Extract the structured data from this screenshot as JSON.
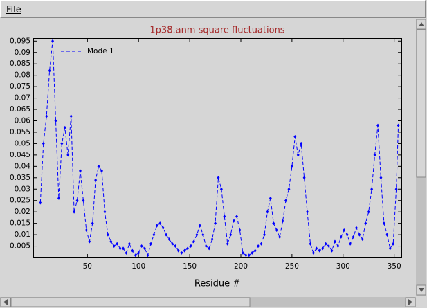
{
  "menu": [
    "File"
  ],
  "chart_data": {
    "type": "line",
    "title": "1p38.anm square fluctuations",
    "xlabel": "Residue #",
    "x": [
      4,
      7,
      10,
      13,
      16,
      19,
      22,
      25,
      28,
      31,
      34,
      37,
      40,
      43,
      46,
      49,
      52,
      55,
      58,
      61,
      64,
      67,
      70,
      73,
      76,
      79,
      82,
      85,
      88,
      91,
      94,
      97,
      100,
      103,
      106,
      109,
      112,
      115,
      118,
      121,
      124,
      127,
      130,
      133,
      136,
      139,
      142,
      145,
      148,
      151,
      154,
      157,
      160,
      163,
      166,
      169,
      172,
      175,
      178,
      181,
      184,
      187,
      190,
      193,
      196,
      199,
      202,
      205,
      208,
      211,
      214,
      217,
      220,
      223,
      226,
      229,
      232,
      235,
      238,
      241,
      244,
      247,
      250,
      253,
      256,
      259,
      262,
      265,
      268,
      271,
      274,
      277,
      280,
      283,
      286,
      289,
      292,
      295,
      298,
      301,
      304,
      307,
      310,
      313,
      316,
      319,
      322,
      325,
      328,
      331,
      334,
      337,
      340,
      343,
      346,
      349,
      352,
      354
    ],
    "series": [
      {
        "name": "Mode 1",
        "color": "#0000ff",
        "values": [
          0.024,
          0.05,
          0.062,
          0.082,
          0.095,
          0.06,
          0.026,
          0.05,
          0.057,
          0.045,
          0.062,
          0.02,
          0.025,
          0.038,
          0.025,
          0.012,
          0.007,
          0.015,
          0.034,
          0.04,
          0.038,
          0.02,
          0.01,
          0.007,
          0.005,
          0.006,
          0.004,
          0.004,
          0.002,
          0.006,
          0.003,
          0.001,
          0.002,
          0.005,
          0.004,
          0.001,
          0.006,
          0.01,
          0.014,
          0.015,
          0.013,
          0.01,
          0.008,
          0.006,
          0.005,
          0.003,
          0.002,
          0.003,
          0.004,
          0.005,
          0.007,
          0.01,
          0.014,
          0.01,
          0.005,
          0.004,
          0.008,
          0.015,
          0.035,
          0.03,
          0.018,
          0.006,
          0.01,
          0.016,
          0.018,
          0.012,
          0.002,
          0.001,
          0.001,
          0.002,
          0.003,
          0.005,
          0.006,
          0.01,
          0.02,
          0.026,
          0.015,
          0.012,
          0.009,
          0.016,
          0.025,
          0.03,
          0.04,
          0.053,
          0.045,
          0.05,
          0.035,
          0.02,
          0.006,
          0.002,
          0.004,
          0.003,
          0.004,
          0.006,
          0.005,
          0.003,
          0.007,
          0.005,
          0.009,
          0.012,
          0.01,
          0.006,
          0.009,
          0.013,
          0.01,
          0.008,
          0.015,
          0.02,
          0.03,
          0.045,
          0.058,
          0.035,
          0.015,
          0.01,
          0.004,
          0.006,
          0.03,
          0.058
        ]
      }
    ],
    "xlim": [
      -3,
      357
    ],
    "ylim": [
      0,
      0.096
    ],
    "xticks": [
      50,
      100,
      150,
      200,
      250,
      300,
      350
    ],
    "yticks": [
      0.005,
      0.01,
      0.015,
      0.02,
      0.025,
      0.03,
      0.035,
      0.04,
      0.045,
      0.05,
      0.055,
      0.06,
      0.065,
      0.07,
      0.075,
      0.08,
      0.085,
      0.09,
      0.095
    ],
    "legend_position": "upper left",
    "linestyle": "dashed",
    "title_color": "#a52a2a"
  }
}
